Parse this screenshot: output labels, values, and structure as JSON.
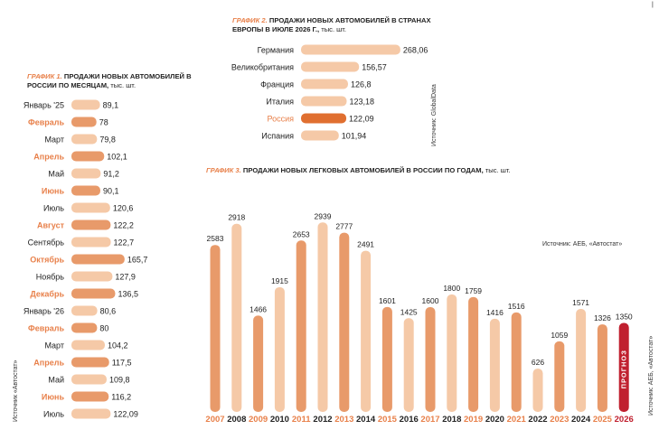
{
  "colors": {
    "light": "#f5c9a7",
    "dark": "#e89a6a",
    "accent": "#e06f30",
    "orange_label": "#e8804a",
    "forecast": "#c0202f"
  },
  "chart_data": [
    {
      "type": "bar",
      "orientation": "horizontal",
      "title_tag": "ГРАФИК 1.",
      "title": "ПРОДАЖИ НОВЫХ АВТОМОБИЛЕЙ В РОССИИ ПО МЕСЯЦАМ,",
      "unit": "тыс. шт.",
      "categories": [
        "Январь '25",
        "Февраль",
        "Март",
        "Апрель",
        "Май",
        "Июнь",
        "Июль",
        "Август",
        "Сентябрь",
        "Октябрь",
        "Ноябрь",
        "Декабрь",
        "Январь '26",
        "Февраль",
        "Март",
        "Апрель",
        "Май",
        "Июнь",
        "Июль"
      ],
      "values": [
        89.1,
        78,
        79.8,
        102.1,
        91.2,
        90.1,
        120.6,
        122.2,
        122.7,
        165.7,
        127.9,
        136.5,
        80.6,
        80,
        104.2,
        117.5,
        109.8,
        116.2,
        122.09
      ],
      "value_labels": [
        "89,1",
        "78",
        "79,8",
        "102,1",
        "91,2",
        "90,1",
        "120,6",
        "122,2",
        "122,7",
        "165,7",
        "127,9",
        "136,5",
        "80,6",
        "80",
        "104,2",
        "117,5",
        "109,8",
        "116,2",
        "122,09"
      ],
      "highlight_index": [
        1,
        3,
        5,
        7,
        9,
        11,
        13,
        15,
        17
      ],
      "source": "Источник «Автостат»"
    },
    {
      "type": "bar",
      "orientation": "horizontal",
      "title_tag": "ГРАФИК 2.",
      "title": "ПРОДАЖИ НОВЫХ АВТОМОБИЛЕЙ В СТРАНАХ ЕВРОПЫ В ИЮЛЕ 2026 Г.,",
      "unit": "тыс. шт.",
      "categories": [
        "Германия",
        "Великобритания",
        "Франция",
        "Италия",
        "Россия",
        "Испания"
      ],
      "values": [
        268.06,
        156.57,
        126.8,
        123.18,
        122.09,
        101.94
      ],
      "value_labels": [
        "268,06",
        "156,57",
        "126,8",
        "123,18",
        "122,09",
        "101,94"
      ],
      "highlight_index": [
        4
      ],
      "source": "Источник: GlobalData"
    },
    {
      "type": "bar",
      "orientation": "vertical",
      "title_tag": "ГРАФИК 3.",
      "title": "ПРОДАЖИ НОВЫХ ЛЕГКОВЫХ АВТОМОБИЛЕЙ В РОССИИ ПО ГОДАМ,",
      "unit": "тыс. шт.",
      "categories": [
        "2007",
        "2008",
        "2009",
        "2010",
        "2011",
        "2012",
        "2013",
        "2014",
        "2015",
        "2016",
        "2017",
        "2018",
        "2019",
        "2020",
        "2021",
        "2022",
        "2023",
        "2024",
        "2025",
        "2026"
      ],
      "values": [
        2583,
        2918,
        1466,
        1915,
        2653,
        2939,
        2777,
        2491,
        1601,
        1425,
        1600,
        1800,
        1759,
        1416,
        1516,
        626,
        1059,
        1571,
        1326,
        1350
      ],
      "value_labels": [
        "2583",
        "2918",
        "1466",
        "1915",
        "2653",
        "2939",
        "2777",
        "2491",
        "1601",
        "1425",
        "1600",
        "1800",
        "1759",
        "1416",
        "1516",
        "626",
        "1059",
        "1571",
        "1326",
        "1350"
      ],
      "highlight_index": [
        0,
        2,
        4,
        6,
        8,
        10,
        12,
        14,
        16,
        18
      ],
      "forecast_index": 19,
      "forecast_label": "прогноз",
      "source": "Источник: АЕБ, «Автостат»"
    }
  ],
  "page_mark": "|"
}
